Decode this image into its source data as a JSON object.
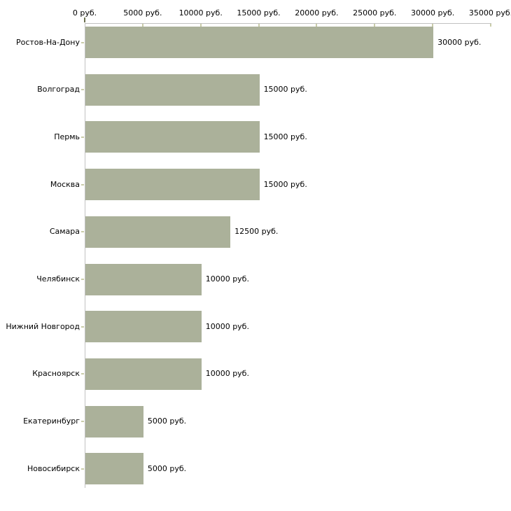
{
  "chart_data": {
    "type": "bar",
    "orientation": "horizontal",
    "categories": [
      "Ростов-На-Дону",
      "Волгоград",
      "Пермь",
      "Москва",
      "Самара",
      "Челябинск",
      "Нижний Новгород",
      "Красноярск",
      "Екатеринбург",
      "Новосибирск"
    ],
    "values": [
      30000,
      15000,
      15000,
      15000,
      12500,
      10000,
      10000,
      10000,
      5000,
      5000
    ],
    "bar_labels": [
      "30000 руб.",
      "15000 руб.",
      "15000 руб.",
      "15000 руб.",
      "12500 руб.",
      "10000 руб.",
      "10000 руб.",
      "10000 руб.",
      "5000 руб.",
      "5000 руб."
    ],
    "x_axis": {
      "min": 0,
      "max": 35000,
      "tick_values": [
        0,
        5000,
        10000,
        15000,
        20000,
        25000,
        30000,
        35000
      ],
      "tick_labels": [
        "0 руб.",
        "5000 руб.",
        "10000 руб.",
        "15000 руб.",
        "20000 руб.",
        "25000 руб.",
        "30000 руб.",
        "35000 руб."
      ],
      "unit": "руб."
    },
    "title": "",
    "ylabel": "",
    "xlabel": "",
    "grid": false,
    "legend": null,
    "colors": {
      "bar": "#abb19a",
      "axis_line": "#c1c1c1",
      "tick": "#c9cca9",
      "zero_tick": "#6b6f4f",
      "text": "#000000",
      "background": "#ffffff"
    }
  }
}
